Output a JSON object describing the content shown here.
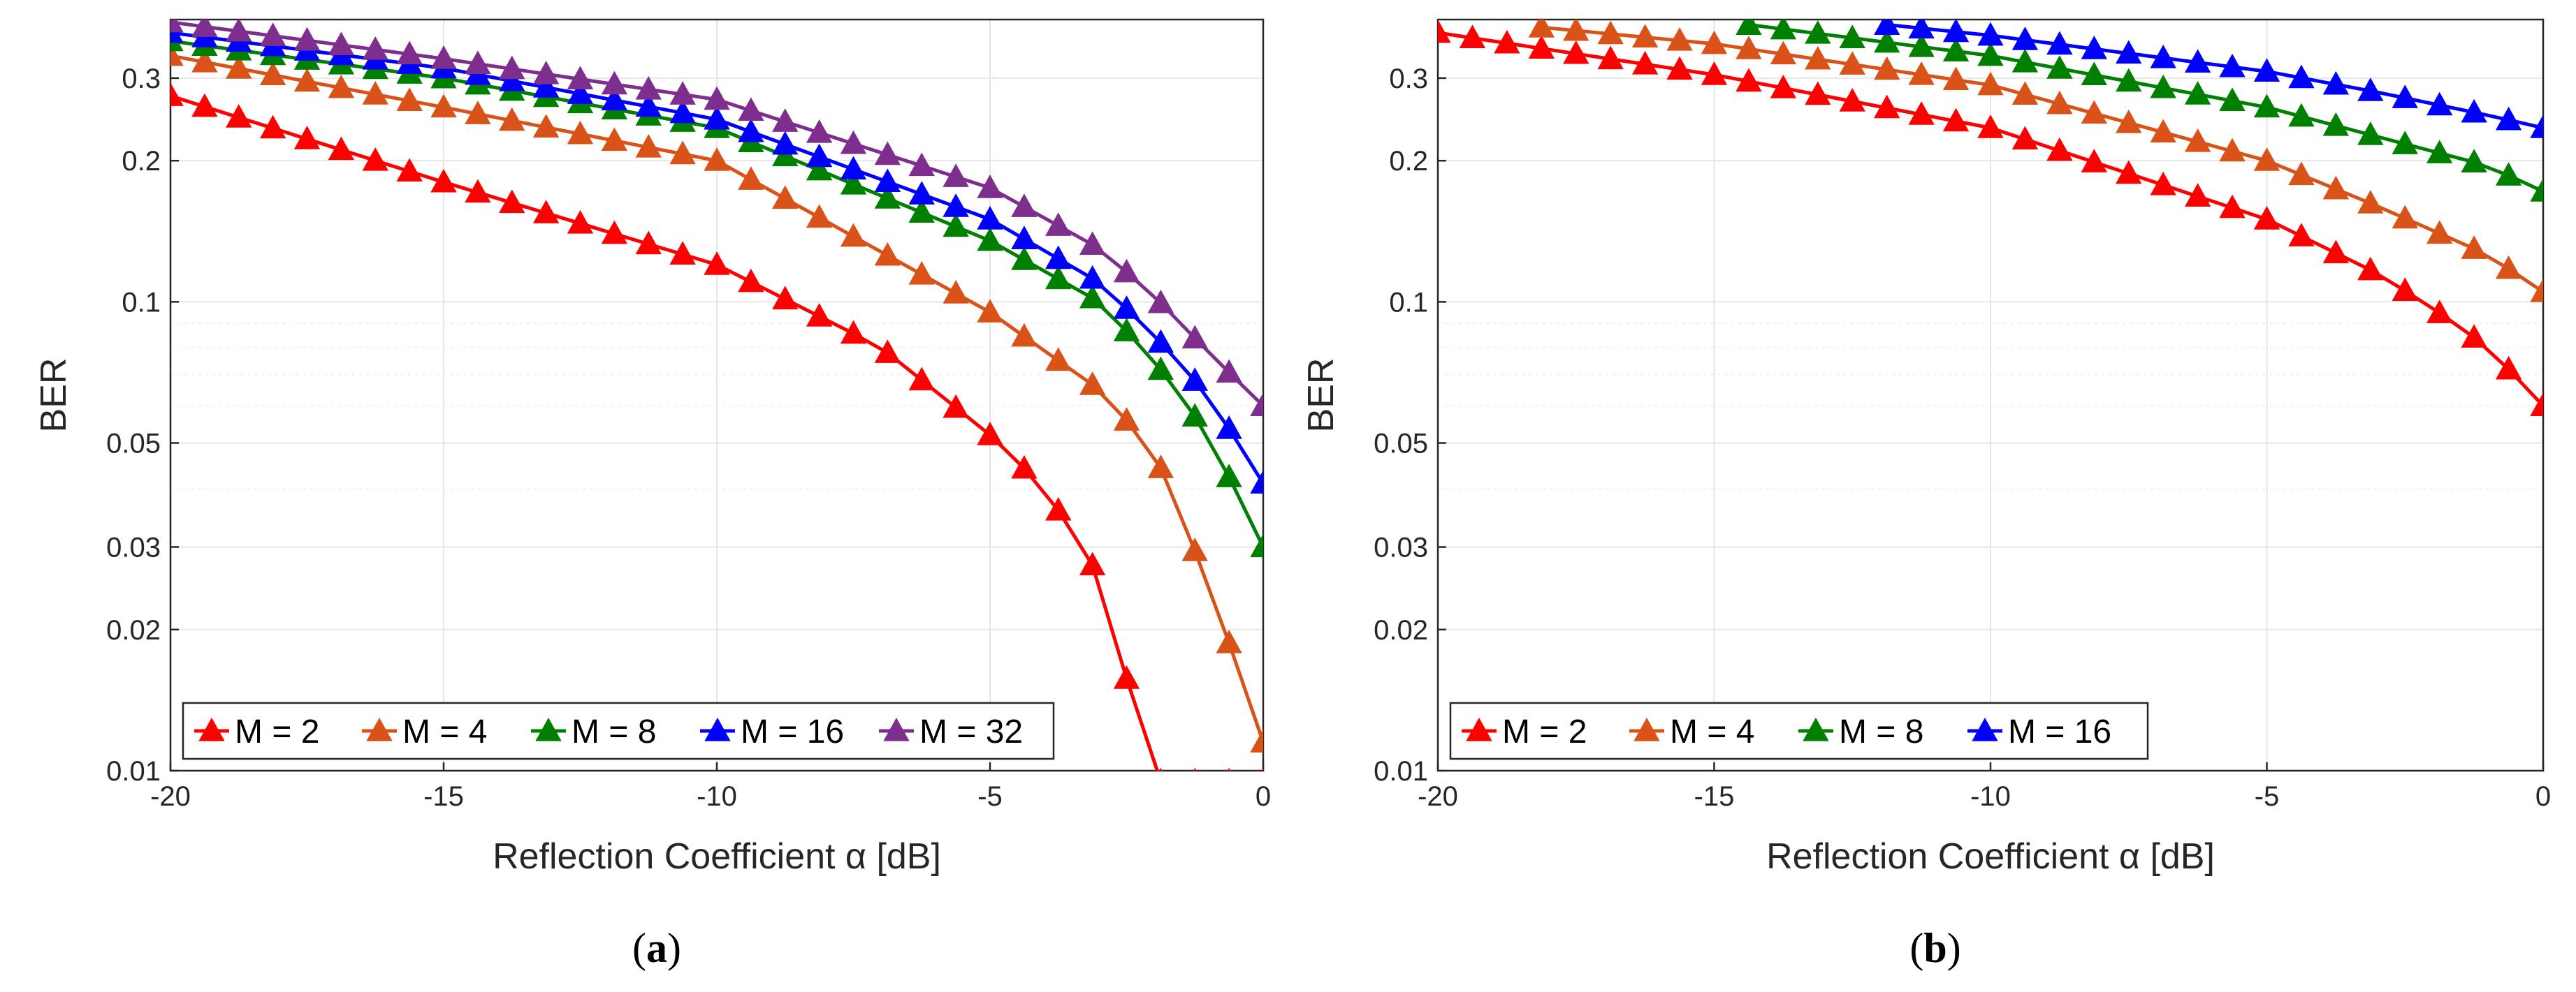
{
  "chart_data": [
    {
      "type": "line",
      "id": "a",
      "caption_letter": "a",
      "xlabel": "Reflection Coefficient α [dB]",
      "ylabel": "BER",
      "xlim": [
        -20,
        0
      ],
      "ylim": [
        0.01,
        0.4
      ],
      "yscale": "log",
      "x_ticks": [
        -20,
        -15,
        -10,
        -5,
        0
      ],
      "x_tick_labels": [
        "-20",
        "-15",
        "-10",
        "-5",
        "0"
      ],
      "y_ticks": [
        0.01,
        0.02,
        0.03,
        0.05,
        0.1,
        0.2,
        0.3
      ],
      "y_tick_labels": [
        "0.01",
        "0.02",
        "0.03",
        "0.05",
        "0.1",
        "0.2",
        "0.3"
      ],
      "grid": true,
      "legend_position": "bottom-left",
      "series": [
        {
          "name": "M = 2",
          "color": "#ff0000",
          "marker": "triangle",
          "x_start": -20,
          "x_step": 0.625,
          "anchors": [
            [
              -20,
              0.275
            ],
            [
              -15,
              0.18
            ],
            [
              -10,
              0.12
            ],
            [
              -7,
              0.08
            ],
            [
              -5,
              0.052
            ],
            [
              -4,
              0.04
            ],
            [
              -3,
              0.026
            ],
            [
              -2,
              0.0095
            ]
          ]
        },
        {
          "name": "M = 4",
          "color": "#d95319",
          "marker": "triangle",
          "x_start": -20,
          "x_step": 0.625,
          "anchors": [
            [
              -20,
              0.335
            ],
            [
              -15,
              0.26
            ],
            [
              -10,
              0.2
            ],
            [
              -5,
              0.095
            ],
            [
              -3,
              0.065
            ],
            [
              -2,
              0.048
            ],
            [
              -1,
              0.025
            ],
            [
              -0.5,
              0.017
            ],
            [
              0,
              0.0115
            ]
          ]
        },
        {
          "name": "M = 8",
          "color": "#008000",
          "marker": "triangle",
          "x_start": -20,
          "x_step": 0.625,
          "anchors": [
            [
              -20,
              0.36
            ],
            [
              -15,
              0.3
            ],
            [
              -10,
              0.235
            ],
            [
              -5,
              0.135
            ],
            [
              -3,
              0.1
            ],
            [
              -2,
              0.075
            ],
            [
              -1,
              0.052
            ],
            [
              0,
              0.03
            ]
          ]
        },
        {
          "name": "M = 16",
          "color": "#0000ff",
          "marker": "triangle",
          "x_start": -20,
          "x_step": 0.625,
          "anchors": [
            [
              -20,
              0.375
            ],
            [
              -15,
              0.315
            ],
            [
              -10,
              0.245
            ],
            [
              -5,
              0.15
            ],
            [
              -3,
              0.11
            ],
            [
              -2,
              0.085
            ],
            [
              -1,
              0.063
            ],
            [
              0,
              0.041
            ]
          ]
        },
        {
          "name": "M = 32",
          "color": "#7e2f8e",
          "marker": "triangle",
          "x_start": -20,
          "x_step": 0.625,
          "anchors": [
            [
              -20,
              0.395
            ],
            [
              -15,
              0.33
            ],
            [
              -10,
              0.27
            ],
            [
              -5,
              0.175
            ],
            [
              -3,
              0.13
            ],
            [
              -2,
              0.103
            ],
            [
              -1,
              0.078
            ],
            [
              0,
              0.06
            ]
          ]
        }
      ]
    },
    {
      "type": "line",
      "id": "b",
      "caption_letter": "b",
      "xlabel": "Reflection Coefficient α [dB]",
      "ylabel": "BER",
      "xlim": [
        -20,
        0
      ],
      "ylim": [
        0.01,
        0.4
      ],
      "yscale": "log",
      "x_ticks": [
        -20,
        -15,
        -10,
        -5,
        0
      ],
      "x_tick_labels": [
        "-20",
        "-15",
        "-10",
        "-5",
        "0"
      ],
      "y_ticks": [
        0.01,
        0.02,
        0.03,
        0.05,
        0.1,
        0.2,
        0.3
      ],
      "y_tick_labels": [
        "0.01",
        "0.02",
        "0.03",
        "0.05",
        "0.1",
        "0.2",
        "0.3"
      ],
      "grid": true,
      "legend_position": "bottom-left",
      "series": [
        {
          "name": "M = 2",
          "color": "#ff0000",
          "marker": "triangle",
          "x_start": -20,
          "x_step": 0.625,
          "anchors": [
            [
              -20,
              0.375
            ],
            [
              -15,
              0.305
            ],
            [
              -10,
              0.235
            ],
            [
              -5,
              0.15
            ],
            [
              -3,
              0.115
            ],
            [
              -2,
              0.097
            ],
            [
              -1,
              0.08
            ],
            [
              0,
              0.06
            ]
          ]
        },
        {
          "name": "M = 4",
          "color": "#d95319",
          "marker": "triangle",
          "x_start": -18.125,
          "x_step": 0.625,
          "anchors": [
            [
              -18.125,
              0.385
            ],
            [
              -15,
              0.355
            ],
            [
              -10,
              0.29
            ],
            [
              -5,
              0.2
            ],
            [
              -3,
              0.16
            ],
            [
              -1,
              0.126
            ],
            [
              0,
              0.105
            ]
          ]
        },
        {
          "name": "M = 8",
          "color": "#008000",
          "marker": "triangle",
          "x_start": -14.375,
          "x_step": 0.625,
          "anchors": [
            [
              -14.375,
              0.39
            ],
            [
              -10,
              0.335
            ],
            [
              -5,
              0.26
            ],
            [
              -3,
              0.225
            ],
            [
              -1,
              0.195
            ],
            [
              0,
              0.172
            ]
          ]
        },
        {
          "name": "M = 16",
          "color": "#0000ff",
          "marker": "triangle",
          "x_start": -11.875,
          "x_step": 0.625,
          "anchors": [
            [
              -11.875,
              0.39
            ],
            [
              -10,
              0.37
            ],
            [
              -5,
              0.31
            ],
            [
              -3,
              0.28
            ],
            [
              -1,
              0.25
            ],
            [
              0,
              0.235
            ]
          ]
        }
      ]
    }
  ]
}
